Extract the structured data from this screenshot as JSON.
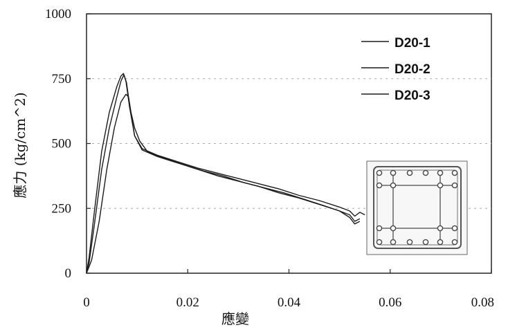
{
  "chart_data": {
    "type": "line",
    "title": "",
    "xlabel": "應變",
    "ylabel": "應力 (kg/cm^2)",
    "xlim": [
      0,
      0.08
    ],
    "ylim": [
      0,
      1000
    ],
    "x_ticks": [
      {
        "value": 0,
        "label": "0"
      },
      {
        "value": 0.02,
        "label": "0.02"
      },
      {
        "value": 0.04,
        "label": "0.04"
      },
      {
        "value": 0.06,
        "label": "0.06"
      },
      {
        "value": 0.08,
        "label": "0.08"
      }
    ],
    "y_ticks": [
      {
        "value": 0,
        "label": "0"
      },
      {
        "value": 250,
        "label": "250"
      },
      {
        "value": 500,
        "label": "500"
      },
      {
        "value": 750,
        "label": "750"
      },
      {
        "value": 1000,
        "label": "1000"
      }
    ],
    "grid": "horizontal-dashed",
    "legend_position": "top-right",
    "line_color": "#1a1a1a",
    "series": [
      {
        "name": "D20-1",
        "x": [
          0,
          0.0005,
          0.0015,
          0.003,
          0.0045,
          0.006,
          0.0068,
          0.0073,
          0.0078,
          0.0085,
          0.0095,
          0.011,
          0.014,
          0.018,
          0.022,
          0.026,
          0.03,
          0.034,
          0.038,
          0.042,
          0.046,
          0.05,
          0.052,
          0.053,
          0.054,
          0.055
        ],
        "y": [
          0,
          60,
          230,
          470,
          620,
          720,
          760,
          770,
          740,
          640,
          530,
          480,
          455,
          430,
          405,
          385,
          365,
          345,
          325,
          300,
          280,
          255,
          240,
          220,
          235,
          225
        ]
      },
      {
        "name": "D20-2",
        "x": [
          0,
          0.0005,
          0.0015,
          0.003,
          0.0045,
          0.006,
          0.0068,
          0.0074,
          0.0079,
          0.0085,
          0.0095,
          0.011,
          0.014,
          0.018,
          0.022,
          0.026,
          0.03,
          0.034,
          0.038,
          0.042,
          0.046,
          0.05,
          0.052,
          0.053,
          0.054
        ],
        "y": [
          0,
          40,
          180,
          400,
          560,
          680,
          740,
          765,
          735,
          650,
          530,
          475,
          450,
          425,
          400,
          375,
          355,
          335,
          310,
          290,
          265,
          240,
          215,
          190,
          200
        ]
      },
      {
        "name": "D20-3",
        "x": [
          0,
          0.001,
          0.0025,
          0.004,
          0.0055,
          0.0068,
          0.0078,
          0.0083,
          0.0088,
          0.0095,
          0.0105,
          0.012,
          0.015,
          0.019,
          0.023,
          0.027,
          0.031,
          0.035,
          0.039,
          0.043,
          0.047,
          0.05,
          0.052,
          0.053,
          0.054
        ],
        "y": [
          0,
          50,
          200,
          400,
          560,
          660,
          690,
          680,
          620,
          560,
          510,
          470,
          445,
          420,
          395,
          375,
          350,
          330,
          310,
          285,
          260,
          240,
          225,
          200,
          210
        ]
      }
    ]
  }
}
